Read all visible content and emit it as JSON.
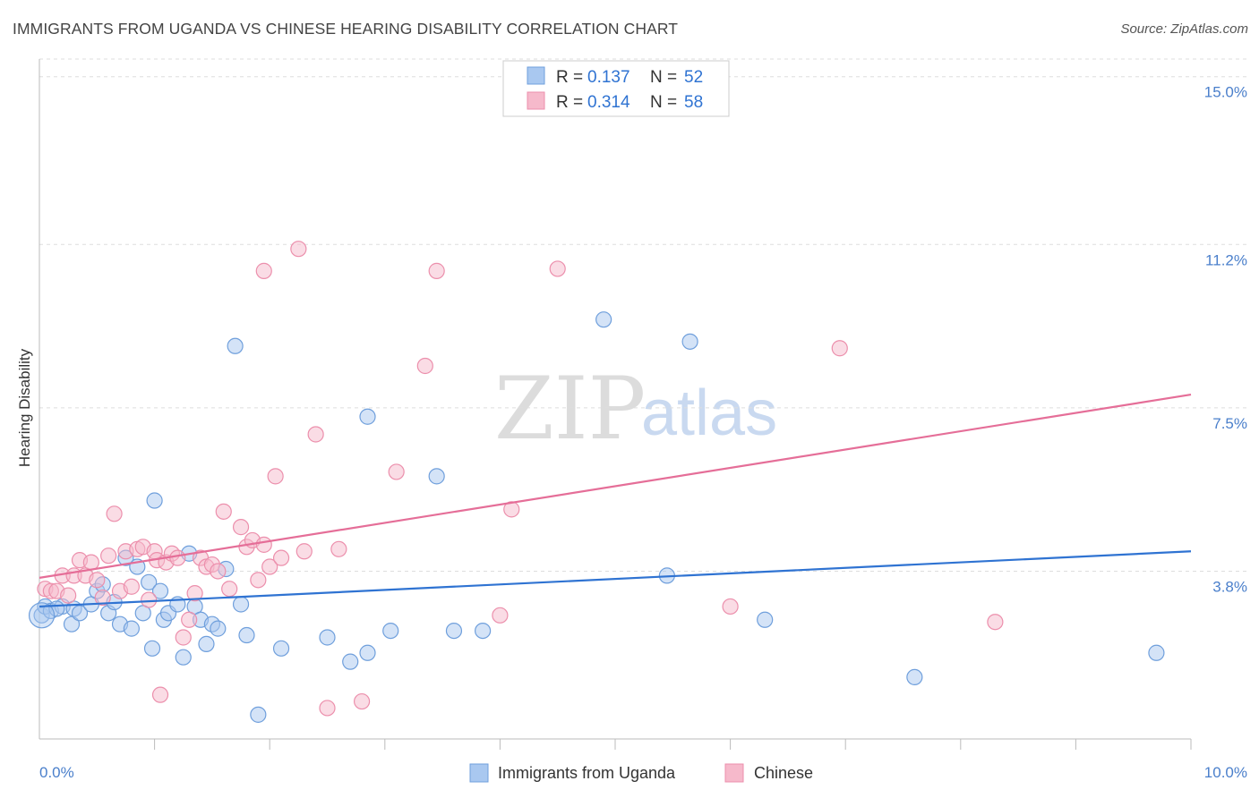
{
  "title": "IMMIGRANTS FROM UGANDA VS CHINESE HEARING DISABILITY CORRELATION CHART",
  "source": "Source: ZipAtlas.com",
  "watermark": {
    "zip": "ZIP",
    "atlas": "atlas"
  },
  "colors": {
    "blue_fill": "#a9c8f0",
    "blue_stroke": "#6f9fdc",
    "blue_line": "#2f73d2",
    "pink_fill": "#f6b9cb",
    "pink_stroke": "#ec8fac",
    "pink_line": "#e56e98",
    "grid": "#dddddd",
    "tick_text": "#4a7fcb"
  },
  "legend": [
    {
      "r_label": "R =",
      "r_value": "0.137",
      "n_label": "N =",
      "n_value": "52"
    },
    {
      "r_label": "R =",
      "r_value": "0.314",
      "n_label": "N =",
      "n_value": "58"
    }
  ],
  "chart_data": {
    "type": "scatter",
    "title": "IMMIGRANTS FROM UGANDA VS CHINESE HEARING DISABILITY CORRELATION CHART",
    "xlabel": "",
    "ylabel": "Hearing Disability",
    "xlim": [
      0,
      10
    ],
    "ylim": [
      0,
      15.4
    ],
    "x_tick_labels": [
      "0.0%",
      "10.0%"
    ],
    "y_ticks": [
      3.8,
      7.5,
      11.2,
      15.0
    ],
    "y_tick_labels": [
      "3.8%",
      "7.5%",
      "11.2%",
      "15.0%"
    ],
    "grid": true,
    "legend_position": "top-center",
    "series": [
      {
        "name": "Immigrants from Uganda",
        "color": "blue",
        "trend": {
          "x": [
            0,
            10
          ],
          "y": [
            3.0,
            4.25
          ]
        },
        "points": [
          [
            0.02,
            2.8
          ],
          [
            0.05,
            3.0
          ],
          [
            0.1,
            2.9
          ],
          [
            0.2,
            3.0
          ],
          [
            0.15,
            2.95
          ],
          [
            0.3,
            2.95
          ],
          [
            0.28,
            2.6
          ],
          [
            0.35,
            2.85
          ],
          [
            0.45,
            3.05
          ],
          [
            0.5,
            3.35
          ],
          [
            0.55,
            3.5
          ],
          [
            0.6,
            2.85
          ],
          [
            0.65,
            3.1
          ],
          [
            0.7,
            2.6
          ],
          [
            0.75,
            4.1
          ],
          [
            0.8,
            2.5
          ],
          [
            0.85,
            3.9
          ],
          [
            0.9,
            2.85
          ],
          [
            0.95,
            3.55
          ],
          [
            0.98,
            2.05
          ],
          [
            1.0,
            5.4
          ],
          [
            1.05,
            3.35
          ],
          [
            1.08,
            2.7
          ],
          [
            1.12,
            2.85
          ],
          [
            1.2,
            3.05
          ],
          [
            1.25,
            1.85
          ],
          [
            1.3,
            4.2
          ],
          [
            1.35,
            3.0
          ],
          [
            1.4,
            2.7
          ],
          [
            1.45,
            2.15
          ],
          [
            1.5,
            2.6
          ],
          [
            1.55,
            2.5
          ],
          [
            1.62,
            3.85
          ],
          [
            1.7,
            8.9
          ],
          [
            1.75,
            3.05
          ],
          [
            1.8,
            2.35
          ],
          [
            1.9,
            0.55
          ],
          [
            2.1,
            2.05
          ],
          [
            2.5,
            2.3
          ],
          [
            2.7,
            1.75
          ],
          [
            2.85,
            1.95
          ],
          [
            2.85,
            7.3
          ],
          [
            3.05,
            2.45
          ],
          [
            3.45,
            5.95
          ],
          [
            3.6,
            2.45
          ],
          [
            3.85,
            2.45
          ],
          [
            4.9,
            9.5
          ],
          [
            5.45,
            3.7
          ],
          [
            5.65,
            9.0
          ],
          [
            6.3,
            2.7
          ],
          [
            7.6,
            1.4
          ],
          [
            9.7,
            1.95
          ]
        ]
      },
      {
        "name": "Chinese",
        "color": "pink",
        "trend": {
          "x": [
            0,
            10
          ],
          "y": [
            3.65,
            7.8
          ]
        },
        "points": [
          [
            0.05,
            3.4
          ],
          [
            0.1,
            3.35
          ],
          [
            0.15,
            3.35
          ],
          [
            0.2,
            3.7
          ],
          [
            0.25,
            3.25
          ],
          [
            0.3,
            3.7
          ],
          [
            0.35,
            4.05
          ],
          [
            0.4,
            3.7
          ],
          [
            0.45,
            4.0
          ],
          [
            0.5,
            3.6
          ],
          [
            0.55,
            3.2
          ],
          [
            0.6,
            4.15
          ],
          [
            0.65,
            5.1
          ],
          [
            0.7,
            3.35
          ],
          [
            0.75,
            4.25
          ],
          [
            0.8,
            3.45
          ],
          [
            0.85,
            4.3
          ],
          [
            0.9,
            4.35
          ],
          [
            0.95,
            3.15
          ],
          [
            1.0,
            4.25
          ],
          [
            1.02,
            4.05
          ],
          [
            1.05,
            1.0
          ],
          [
            1.1,
            4.0
          ],
          [
            1.15,
            4.2
          ],
          [
            1.2,
            4.1
          ],
          [
            1.25,
            2.3
          ],
          [
            1.3,
            2.7
          ],
          [
            1.35,
            3.3
          ],
          [
            1.4,
            4.1
          ],
          [
            1.45,
            3.9
          ],
          [
            1.5,
            3.95
          ],
          [
            1.55,
            3.8
          ],
          [
            1.6,
            5.15
          ],
          [
            1.65,
            3.4
          ],
          [
            1.75,
            4.8
          ],
          [
            1.8,
            4.35
          ],
          [
            1.85,
            4.5
          ],
          [
            1.9,
            3.6
          ],
          [
            1.95,
            4.4
          ],
          [
            2.0,
            3.9
          ],
          [
            2.05,
            5.95
          ],
          [
            2.1,
            4.1
          ],
          [
            1.95,
            10.6
          ],
          [
            2.3,
            4.25
          ],
          [
            2.25,
            11.1
          ],
          [
            2.4,
            6.9
          ],
          [
            2.5,
            0.7
          ],
          [
            2.6,
            4.3
          ],
          [
            2.8,
            0.85
          ],
          [
            3.1,
            6.05
          ],
          [
            3.35,
            8.45
          ],
          [
            3.45,
            10.6
          ],
          [
            4.0,
            2.8
          ],
          [
            4.1,
            5.2
          ],
          [
            4.5,
            10.65
          ],
          [
            6.0,
            3.0
          ],
          [
            6.95,
            8.85
          ],
          [
            8.3,
            2.65
          ]
        ]
      }
    ]
  },
  "bottom_legend": [
    {
      "label": "Immigrants from Uganda"
    },
    {
      "label": "Chinese"
    }
  ]
}
